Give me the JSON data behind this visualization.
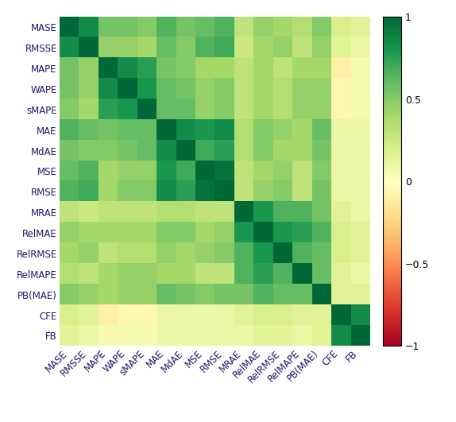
{
  "labels": [
    "MASE",
    "RMSSE",
    "MAPE",
    "WAPE",
    "sMAPE",
    "MAE",
    "MdAE",
    "MSE",
    "RMSE",
    "MRAE",
    "RelMAE",
    "RelRMSE",
    "RelMAPE",
    "PB(MAE)",
    "CFE",
    "FB"
  ],
  "matrix": [
    [
      1.0,
      0.85,
      0.55,
      0.55,
      0.5,
      0.65,
      0.55,
      0.6,
      0.65,
      0.3,
      0.45,
      0.4,
      0.35,
      0.5,
      0.2,
      0.15
    ],
    [
      0.85,
      1.0,
      0.45,
      0.45,
      0.4,
      0.6,
      0.5,
      0.65,
      0.7,
      0.25,
      0.4,
      0.45,
      0.3,
      0.45,
      0.15,
      0.1
    ],
    [
      0.55,
      0.45,
      1.0,
      0.85,
      0.75,
      0.55,
      0.5,
      0.4,
      0.4,
      0.3,
      0.4,
      0.3,
      0.4,
      0.4,
      -0.1,
      0.05
    ],
    [
      0.55,
      0.45,
      0.85,
      1.0,
      0.8,
      0.6,
      0.55,
      0.45,
      0.5,
      0.3,
      0.4,
      0.35,
      0.45,
      0.45,
      -0.05,
      0.05
    ],
    [
      0.5,
      0.4,
      0.75,
      0.8,
      1.0,
      0.6,
      0.6,
      0.45,
      0.5,
      0.3,
      0.4,
      0.35,
      0.45,
      0.45,
      -0.05,
      0.05
    ],
    [
      0.65,
      0.6,
      0.55,
      0.6,
      0.6,
      1.0,
      0.85,
      0.8,
      0.85,
      0.35,
      0.5,
      0.45,
      0.4,
      0.6,
      0.1,
      0.1
    ],
    [
      0.55,
      0.5,
      0.5,
      0.55,
      0.6,
      0.85,
      1.0,
      0.7,
      0.75,
      0.35,
      0.5,
      0.4,
      0.4,
      0.55,
      0.1,
      0.1
    ],
    [
      0.6,
      0.65,
      0.4,
      0.45,
      0.45,
      0.8,
      0.7,
      1.0,
      0.95,
      0.3,
      0.4,
      0.45,
      0.3,
      0.5,
      0.1,
      0.1
    ],
    [
      0.65,
      0.7,
      0.4,
      0.5,
      0.5,
      0.85,
      0.75,
      0.95,
      1.0,
      0.3,
      0.45,
      0.5,
      0.3,
      0.55,
      0.1,
      0.1
    ],
    [
      0.3,
      0.25,
      0.3,
      0.3,
      0.3,
      0.35,
      0.35,
      0.3,
      0.3,
      1.0,
      0.8,
      0.65,
      0.65,
      0.55,
      0.15,
      0.1
    ],
    [
      0.45,
      0.4,
      0.4,
      0.4,
      0.4,
      0.5,
      0.5,
      0.4,
      0.45,
      0.8,
      1.0,
      0.8,
      0.75,
      0.65,
      0.2,
      0.15
    ],
    [
      0.4,
      0.45,
      0.3,
      0.35,
      0.35,
      0.45,
      0.4,
      0.45,
      0.5,
      0.65,
      0.8,
      1.0,
      0.65,
      0.6,
      0.2,
      0.15
    ],
    [
      0.35,
      0.3,
      0.4,
      0.45,
      0.45,
      0.4,
      0.4,
      0.3,
      0.3,
      0.65,
      0.75,
      0.65,
      1.0,
      0.6,
      0.15,
      0.1
    ],
    [
      0.5,
      0.45,
      0.4,
      0.45,
      0.45,
      0.6,
      0.55,
      0.5,
      0.55,
      0.55,
      0.65,
      0.6,
      0.6,
      1.0,
      0.15,
      0.15
    ],
    [
      0.2,
      0.15,
      -0.1,
      -0.05,
      -0.05,
      0.1,
      0.1,
      0.1,
      0.1,
      0.15,
      0.2,
      0.2,
      0.15,
      0.15,
      1.0,
      0.85
    ],
    [
      0.15,
      0.1,
      0.05,
      0.05,
      0.05,
      0.1,
      0.1,
      0.1,
      0.1,
      0.1,
      0.15,
      0.15,
      0.1,
      0.15,
      0.85,
      1.0
    ]
  ],
  "cmap": "RdYlGn",
  "vmin": -1,
  "vmax": 1,
  "label_color": "#1a1a6e",
  "label_fontsize": 8.5,
  "colorbar_ticks": [
    1,
    0.5,
    0,
    -0.5,
    -1
  ],
  "colorbar_ticklabels": [
    "1",
    "0.5",
    "0",
    "−0.5",
    "−1"
  ],
  "figsize": [
    5.74,
    5.31
  ],
  "dpi": 100
}
